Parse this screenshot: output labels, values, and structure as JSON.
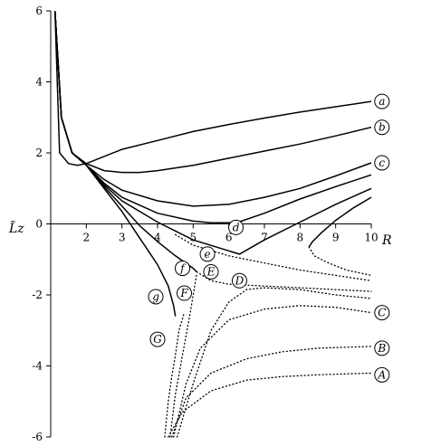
{
  "chart_data": {
    "type": "line",
    "xlabel": "R",
    "ylabel": "L̃z",
    "xlim": [
      1,
      10
    ],
    "ylim": [
      -6,
      6
    ],
    "x_ticks": [
      2,
      3,
      4,
      5,
      6,
      7,
      8,
      9,
      10
    ],
    "y_ticks": [
      -6,
      -4,
      -2,
      0,
      2,
      4,
      6
    ],
    "y_tick_labels": [
      "-6",
      "-4",
      "-2",
      "0",
      "2",
      "4",
      "6"
    ],
    "series": [
      {
        "name": "a",
        "style": "solid",
        "x": [
          1.12,
          1.25,
          1.5,
          1.75,
          2.0,
          2.5,
          3,
          4,
          5,
          6,
          7,
          8,
          9,
          10
        ],
        "y": [
          6.0,
          2.0,
          1.7,
          1.65,
          1.7,
          1.9,
          2.1,
          2.35,
          2.6,
          2.8,
          2.98,
          3.15,
          3.3,
          3.45
        ]
      },
      {
        "name": "b",
        "style": "solid",
        "x": [
          1.12,
          1.3,
          1.6,
          2.0,
          2.5,
          3,
          3.5,
          4,
          5,
          6,
          7,
          8,
          9,
          10
        ],
        "y": [
          6.0,
          3.0,
          2.0,
          1.7,
          1.5,
          1.45,
          1.45,
          1.5,
          1.65,
          1.85,
          2.05,
          2.25,
          2.48,
          2.72
        ]
      },
      {
        "name": "c",
        "style": "solid",
        "x": [
          1.12,
          1.3,
          1.6,
          2.0,
          2.5,
          3,
          4,
          5,
          6,
          7,
          8,
          9,
          10
        ],
        "y": [
          6.0,
          3.0,
          2.0,
          1.65,
          1.25,
          0.95,
          0.65,
          0.5,
          0.55,
          0.75,
          1.0,
          1.35,
          1.72
        ]
      },
      {
        "name": "d",
        "style": "solid",
        "x": [
          1.12,
          1.3,
          1.6,
          2.0,
          2.5,
          3,
          4,
          5,
          5.5,
          6,
          6.3,
          7,
          8,
          9,
          10
        ],
        "y": [
          6.0,
          3.0,
          2.0,
          1.65,
          1.15,
          0.75,
          0.3,
          0.08,
          0.03,
          0.03,
          0.06,
          0.3,
          0.7,
          1.05,
          1.38
        ]
      },
      {
        "name": "e-solid",
        "style": "solid",
        "x": [
          1.12,
          1.3,
          1.6,
          2.0,
          2.5,
          3,
          4,
          5,
          6.3,
          7,
          8,
          9,
          10
        ],
        "y": [
          6.0,
          3.0,
          2.0,
          1.65,
          1.1,
          0.65,
          0.05,
          -0.45,
          -0.85,
          -0.45,
          0.05,
          0.55,
          1.0
        ]
      },
      {
        "name": "e",
        "style": "dotted",
        "x": [
          4.5,
          5,
          6,
          7,
          8,
          9,
          10
        ],
        "y": [
          -0.3,
          -0.6,
          -0.9,
          -1.1,
          -1.3,
          -1.45,
          -1.6
        ]
      },
      {
        "name": "f",
        "style": "solid",
        "x": [
          1.12,
          1.3,
          1.6,
          2.0,
          2.5,
          3,
          3.5,
          4,
          4.5,
          5,
          5.1
        ],
        "y": [
          6.0,
          3.0,
          2.0,
          1.65,
          1.05,
          0.5,
          -0.05,
          -0.5,
          -0.9,
          -1.25,
          -1.35
        ]
      },
      {
        "name": "E",
        "style": "dotted",
        "x": [
          5.1,
          5.5,
          6,
          7,
          8,
          9,
          10
        ],
        "y": [
          -1.35,
          -1.6,
          -1.7,
          -1.75,
          -1.8,
          -1.85,
          -1.9
        ]
      },
      {
        "name": "g",
        "style": "solid",
        "x": [
          1.12,
          1.3,
          1.6,
          2.0,
          2.5,
          3,
          3.5,
          4,
          4.3,
          4.45,
          4.5
        ],
        "y": [
          6.0,
          3.0,
          2.0,
          1.65,
          1.0,
          0.35,
          -0.4,
          -1.15,
          -1.75,
          -2.3,
          -2.6
        ]
      },
      {
        "name": "D",
        "style": "dotted",
        "x": [
          4.55,
          5,
          5.5,
          6,
          6.5,
          7,
          8,
          9,
          10
        ],
        "y": [
          -6.0,
          -4.5,
          -3.0,
          -2.2,
          -1.85,
          -1.8,
          -1.85,
          -2.0,
          -2.1
        ]
      },
      {
        "name": "C",
        "style": "dotted",
        "x": [
          4.45,
          4.8,
          5.2,
          6,
          7,
          8,
          9,
          10
        ],
        "y": [
          -6.0,
          -4.5,
          -3.5,
          -2.7,
          -2.4,
          -2.3,
          -2.35,
          -2.5
        ]
      },
      {
        "name": "B",
        "style": "dotted",
        "x": [
          4.4,
          4.8,
          5.5,
          6.5,
          7.5,
          8.5,
          10
        ],
        "y": [
          -6.0,
          -4.9,
          -4.2,
          -3.8,
          -3.6,
          -3.5,
          -3.45
        ]
      },
      {
        "name": "A",
        "style": "dotted",
        "x": [
          4.3,
          4.7,
          5.5,
          6.5,
          7.5,
          8.5,
          10
        ],
        "y": [
          -6.0,
          -5.3,
          -4.7,
          -4.4,
          -4.3,
          -4.25,
          -4.2
        ]
      },
      {
        "name": "G",
        "style": "dotted",
        "x": [
          4.2,
          4.3,
          4.4,
          4.5,
          4.6,
          4.75
        ],
        "y": [
          -6.0,
          -5.0,
          -4.3,
          -3.7,
          -3.0,
          -2.5
        ]
      },
      {
        "name": "F",
        "style": "dotted",
        "x": [
          4.35,
          4.5,
          4.7,
          4.9,
          5.1
        ],
        "y": [
          -6.0,
          -4.8,
          -3.7,
          -2.6,
          -1.4
        ]
      },
      {
        "name": "h",
        "style": "solid",
        "x": [
          10,
          9.5,
          9,
          8.6,
          8.35,
          8.25
        ],
        "y": [
          0.75,
          0.45,
          0.1,
          -0.25,
          -0.5,
          -0.65
        ]
      },
      {
        "name": "h-dotted",
        "style": "dotted",
        "x": [
          8.25,
          8.4,
          8.8,
          9.3,
          10
        ],
        "y": [
          -0.65,
          -0.9,
          -1.1,
          -1.3,
          -1.45
        ]
      }
    ],
    "curve_labels": [
      {
        "text": "a",
        "x": 10.3,
        "y": 3.45
      },
      {
        "text": "b",
        "x": 10.3,
        "y": 2.72
      },
      {
        "text": "c",
        "x": 10.3,
        "y": 1.72
      },
      {
        "text": "d",
        "x": 6.2,
        "y": -0.1
      },
      {
        "text": "e",
        "x": 5.4,
        "y": -0.85
      },
      {
        "text": "f",
        "x": 4.7,
        "y": -1.25
      },
      {
        "text": "E",
        "x": 5.5,
        "y": -1.35
      },
      {
        "text": "D",
        "x": 6.3,
        "y": -1.6
      },
      {
        "text": "g",
        "x": 3.95,
        "y": -2.05
      },
      {
        "text": "F",
        "x": 4.75,
        "y": -1.95
      },
      {
        "text": "C",
        "x": 10.3,
        "y": -2.5
      },
      {
        "text": "G",
        "x": 4.0,
        "y": -3.25
      },
      {
        "text": "B",
        "x": 10.3,
        "y": -3.5
      },
      {
        "text": "A",
        "x": 10.3,
        "y": -4.25
      }
    ]
  }
}
